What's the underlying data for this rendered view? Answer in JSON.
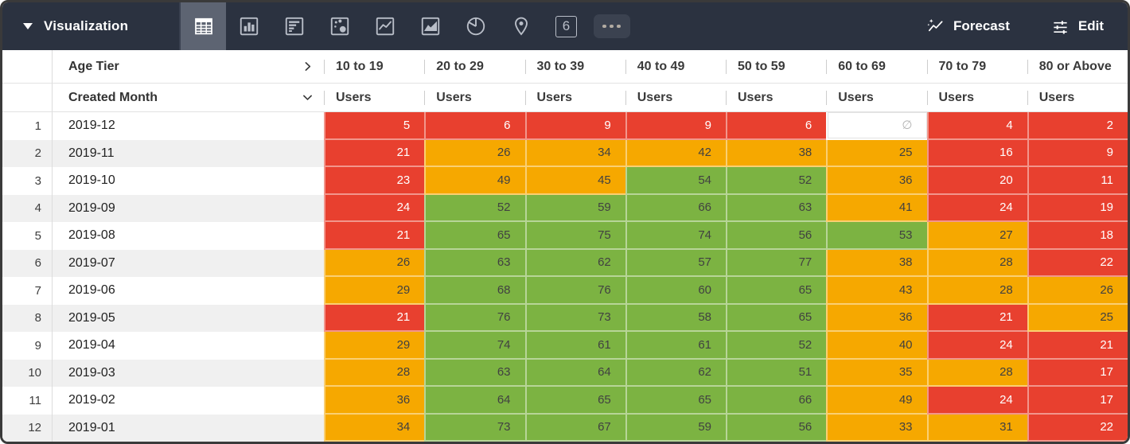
{
  "colors": {
    "topbar": "#2b3240",
    "selected_tile": "#5d6472",
    "red": "#e8402f",
    "orange": "#f6a800",
    "green": "#7cb342"
  },
  "toolbar": {
    "section_label": "Visualization",
    "single_value_glyph": "6",
    "forecast_label": "Forecast",
    "edit_label": "Edit"
  },
  "table": {
    "pivot_header": {
      "field": "Age Tier",
      "columns": [
        "10 to 19",
        "20 to 29",
        "30 to 39",
        "40 to 49",
        "50 to 59",
        "60 to 69",
        "70 to 79",
        "80 or Above"
      ]
    },
    "row_header": {
      "field": "Created Month",
      "measure": "Users"
    },
    "null_symbol": "∅",
    "rows": [
      {
        "index": 1,
        "month": "2019-12",
        "cells": [
          {
            "v": 5,
            "c": "red"
          },
          {
            "v": 6,
            "c": "red"
          },
          {
            "v": 9,
            "c": "red"
          },
          {
            "v": 9,
            "c": "red"
          },
          {
            "v": 6,
            "c": "red"
          },
          {
            "v": null,
            "c": "null"
          },
          {
            "v": 4,
            "c": "red"
          },
          {
            "v": 2,
            "c": "red"
          }
        ]
      },
      {
        "index": 2,
        "month": "2019-11",
        "cells": [
          {
            "v": 21,
            "c": "red"
          },
          {
            "v": 26,
            "c": "orange"
          },
          {
            "v": 34,
            "c": "orange"
          },
          {
            "v": 42,
            "c": "orange"
          },
          {
            "v": 38,
            "c": "orange"
          },
          {
            "v": 25,
            "c": "orange"
          },
          {
            "v": 16,
            "c": "red"
          },
          {
            "v": 9,
            "c": "red"
          }
        ]
      },
      {
        "index": 3,
        "month": "2019-10",
        "cells": [
          {
            "v": 23,
            "c": "red"
          },
          {
            "v": 49,
            "c": "orange"
          },
          {
            "v": 45,
            "c": "orange"
          },
          {
            "v": 54,
            "c": "green"
          },
          {
            "v": 52,
            "c": "green"
          },
          {
            "v": 36,
            "c": "orange"
          },
          {
            "v": 20,
            "c": "red"
          },
          {
            "v": 11,
            "c": "red"
          }
        ]
      },
      {
        "index": 4,
        "month": "2019-09",
        "cells": [
          {
            "v": 24,
            "c": "red"
          },
          {
            "v": 52,
            "c": "green"
          },
          {
            "v": 59,
            "c": "green"
          },
          {
            "v": 66,
            "c": "green"
          },
          {
            "v": 63,
            "c": "green"
          },
          {
            "v": 41,
            "c": "orange"
          },
          {
            "v": 24,
            "c": "red"
          },
          {
            "v": 19,
            "c": "red"
          }
        ]
      },
      {
        "index": 5,
        "month": "2019-08",
        "cells": [
          {
            "v": 21,
            "c": "red"
          },
          {
            "v": 65,
            "c": "green"
          },
          {
            "v": 75,
            "c": "green"
          },
          {
            "v": 74,
            "c": "green"
          },
          {
            "v": 56,
            "c": "green"
          },
          {
            "v": 53,
            "c": "green"
          },
          {
            "v": 27,
            "c": "orange"
          },
          {
            "v": 18,
            "c": "red"
          }
        ]
      },
      {
        "index": 6,
        "month": "2019-07",
        "cells": [
          {
            "v": 26,
            "c": "orange"
          },
          {
            "v": 63,
            "c": "green"
          },
          {
            "v": 62,
            "c": "green"
          },
          {
            "v": 57,
            "c": "green"
          },
          {
            "v": 77,
            "c": "green"
          },
          {
            "v": 38,
            "c": "orange"
          },
          {
            "v": 28,
            "c": "orange"
          },
          {
            "v": 22,
            "c": "red"
          }
        ]
      },
      {
        "index": 7,
        "month": "2019-06",
        "cells": [
          {
            "v": 29,
            "c": "orange"
          },
          {
            "v": 68,
            "c": "green"
          },
          {
            "v": 76,
            "c": "green"
          },
          {
            "v": 60,
            "c": "green"
          },
          {
            "v": 65,
            "c": "green"
          },
          {
            "v": 43,
            "c": "orange"
          },
          {
            "v": 28,
            "c": "orange"
          },
          {
            "v": 26,
            "c": "orange"
          }
        ]
      },
      {
        "index": 8,
        "month": "2019-05",
        "cells": [
          {
            "v": 21,
            "c": "red"
          },
          {
            "v": 76,
            "c": "green"
          },
          {
            "v": 73,
            "c": "green"
          },
          {
            "v": 58,
            "c": "green"
          },
          {
            "v": 65,
            "c": "green"
          },
          {
            "v": 36,
            "c": "orange"
          },
          {
            "v": 21,
            "c": "red"
          },
          {
            "v": 25,
            "c": "orange"
          }
        ]
      },
      {
        "index": 9,
        "month": "2019-04",
        "cells": [
          {
            "v": 29,
            "c": "orange"
          },
          {
            "v": 74,
            "c": "green"
          },
          {
            "v": 61,
            "c": "green"
          },
          {
            "v": 61,
            "c": "green"
          },
          {
            "v": 52,
            "c": "green"
          },
          {
            "v": 40,
            "c": "orange"
          },
          {
            "v": 24,
            "c": "red"
          },
          {
            "v": 21,
            "c": "red"
          }
        ]
      },
      {
        "index": 10,
        "month": "2019-03",
        "cells": [
          {
            "v": 28,
            "c": "orange"
          },
          {
            "v": 63,
            "c": "green"
          },
          {
            "v": 64,
            "c": "green"
          },
          {
            "v": 62,
            "c": "green"
          },
          {
            "v": 51,
            "c": "green"
          },
          {
            "v": 35,
            "c": "orange"
          },
          {
            "v": 28,
            "c": "orange"
          },
          {
            "v": 17,
            "c": "red"
          }
        ]
      },
      {
        "index": 11,
        "month": "2019-02",
        "cells": [
          {
            "v": 36,
            "c": "orange"
          },
          {
            "v": 64,
            "c": "green"
          },
          {
            "v": 65,
            "c": "green"
          },
          {
            "v": 65,
            "c": "green"
          },
          {
            "v": 66,
            "c": "green"
          },
          {
            "v": 49,
            "c": "orange"
          },
          {
            "v": 24,
            "c": "red"
          },
          {
            "v": 17,
            "c": "red"
          }
        ]
      },
      {
        "index": 12,
        "month": "2019-01",
        "cells": [
          {
            "v": 34,
            "c": "orange"
          },
          {
            "v": 73,
            "c": "green"
          },
          {
            "v": 67,
            "c": "green"
          },
          {
            "v": 59,
            "c": "green"
          },
          {
            "v": 56,
            "c": "green"
          },
          {
            "v": 33,
            "c": "orange"
          },
          {
            "v": 31,
            "c": "orange"
          },
          {
            "v": 22,
            "c": "red"
          }
        ]
      }
    ]
  }
}
